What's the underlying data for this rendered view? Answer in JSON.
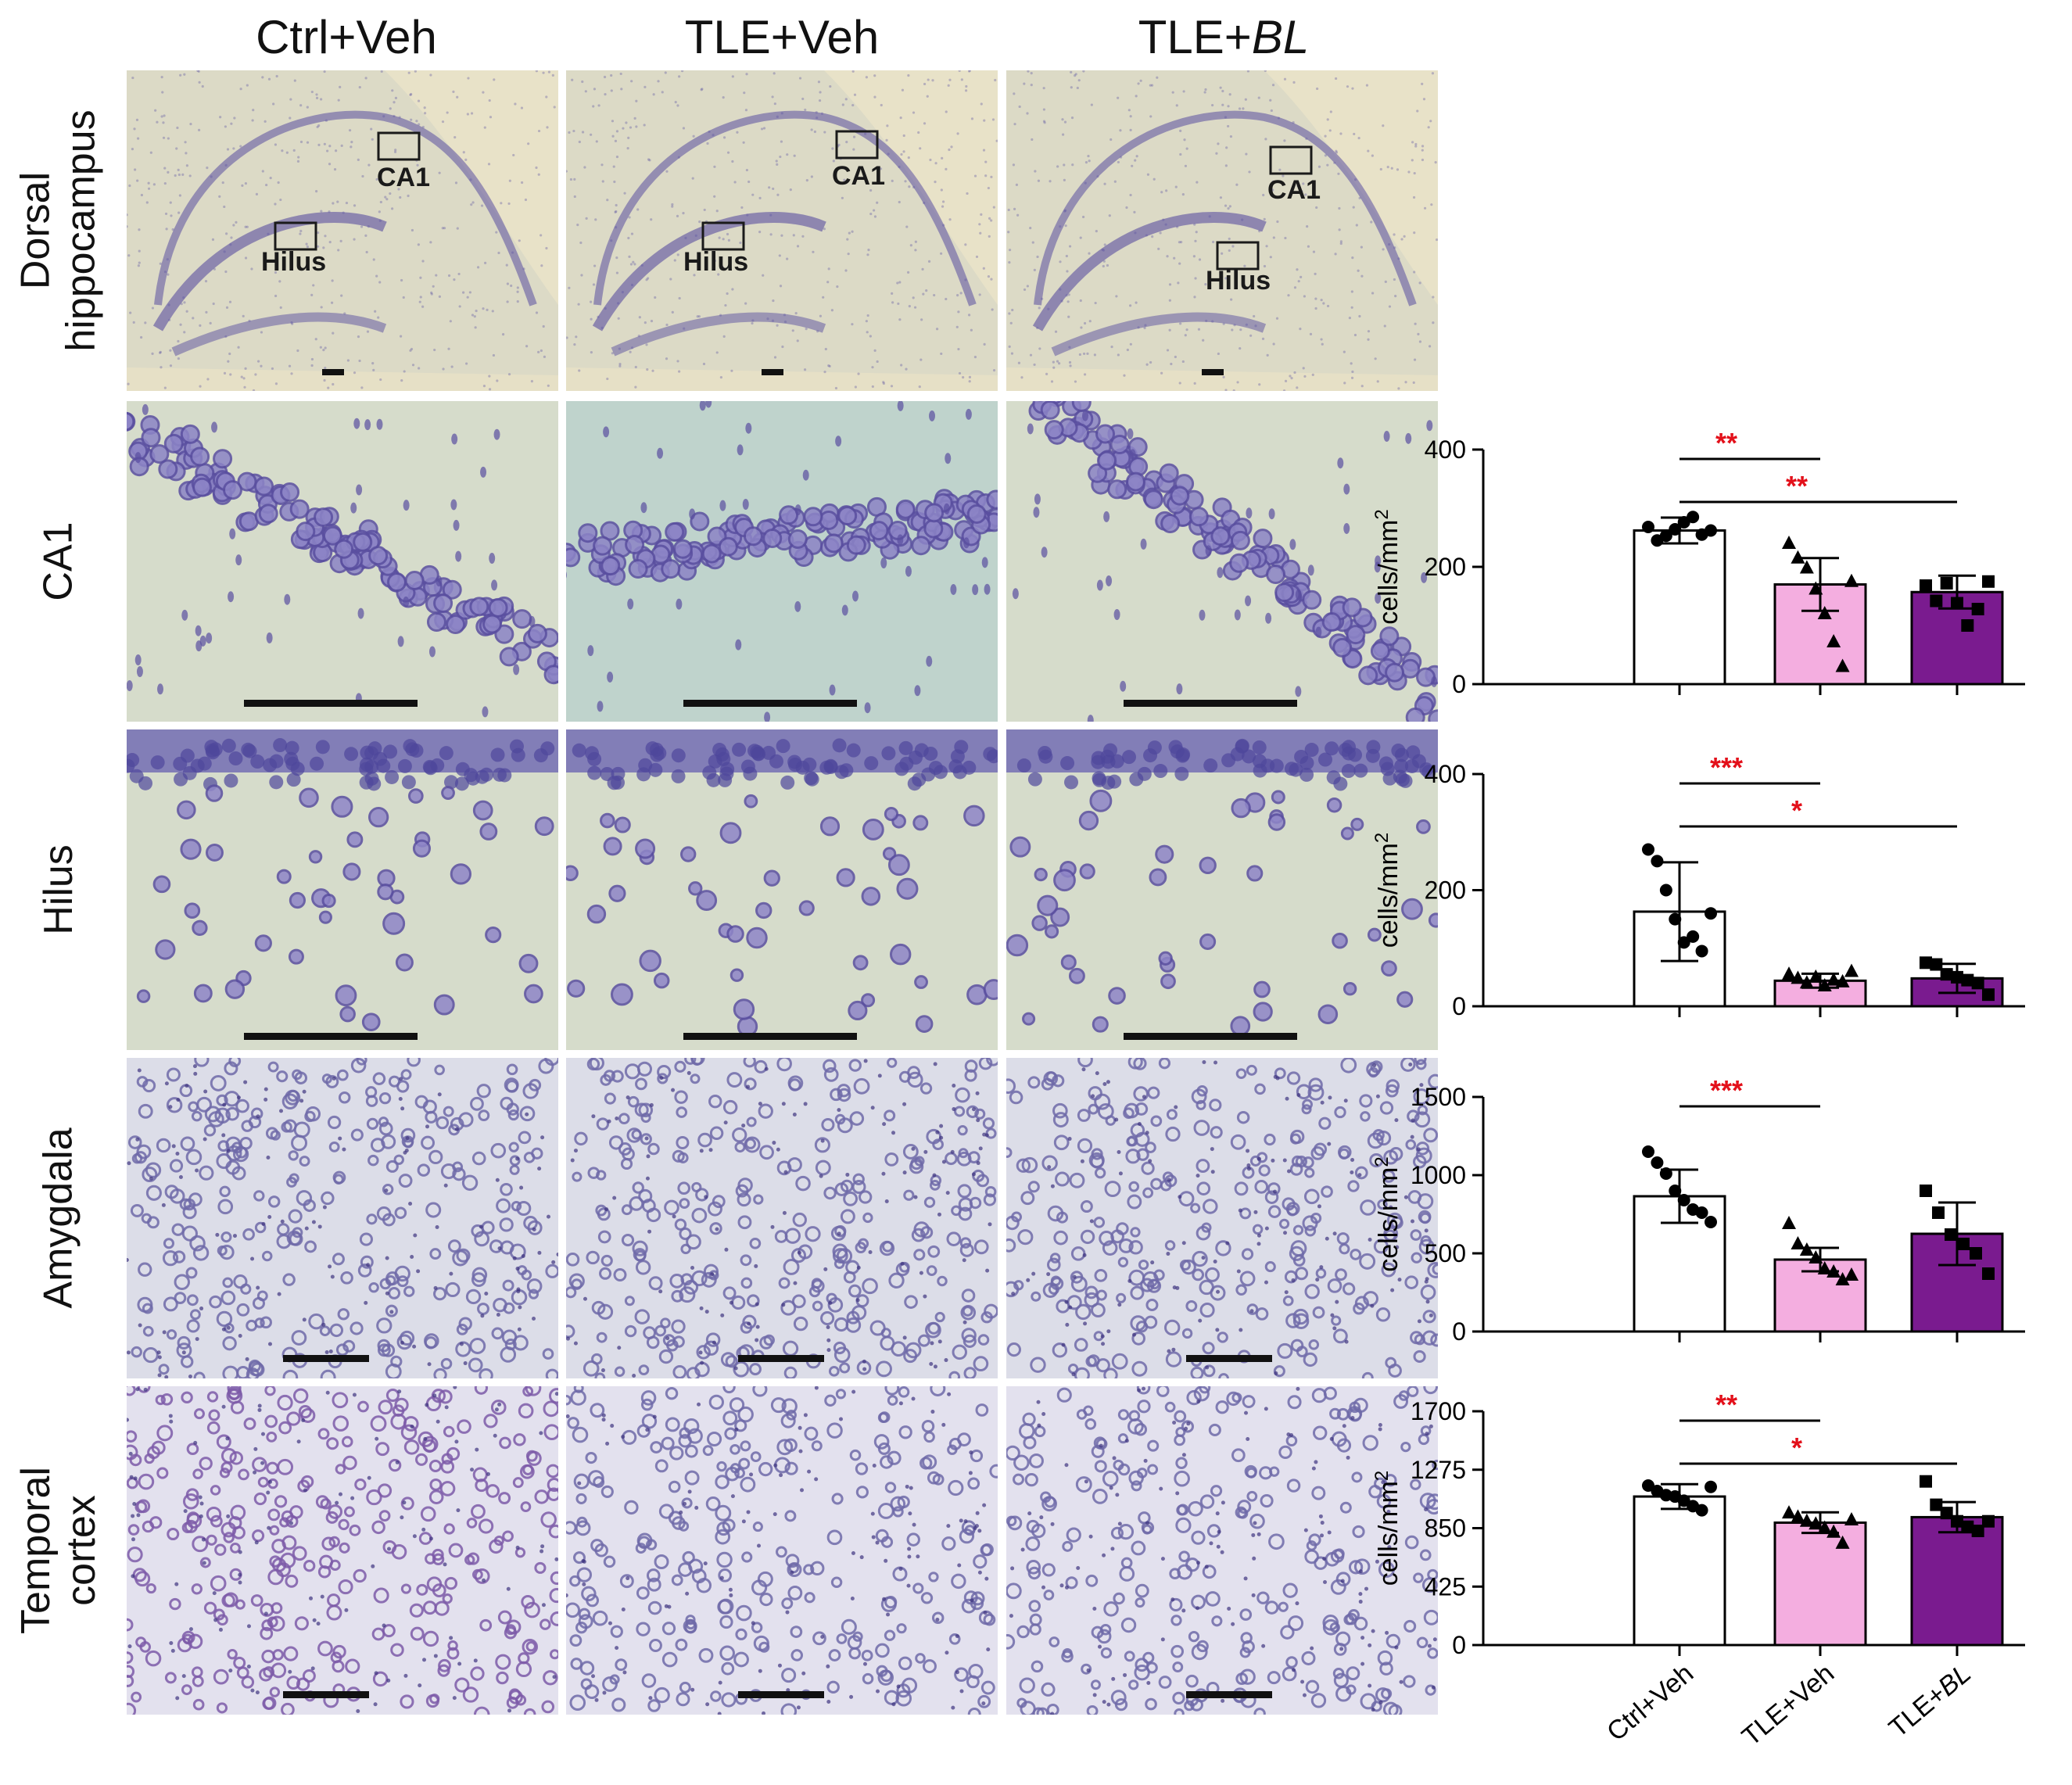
{
  "columns": [
    {
      "prefix": "Ctrl+Veh",
      "italic": ""
    },
    {
      "prefix": "TLE+",
      "italic": "Veh"
    },
    {
      "prefix": "TLE+",
      "italic": "BL"
    }
  ],
  "column_labels": [
    "Ctrl+Veh",
    "TLE+Veh",
    "TLE+BL"
  ],
  "rows": [
    {
      "label": [
        "Dorsal",
        "hippocampus"
      ]
    },
    {
      "label": [
        "CA1"
      ]
    },
    {
      "label": [
        "Hilus"
      ]
    },
    {
      "label": [
        "Amygdala"
      ]
    },
    {
      "label": [
        "Temporal",
        "cortex"
      ]
    }
  ],
  "overview_labels": {
    "ca1": "CA1",
    "hilus": "Hilus"
  },
  "colors": {
    "ctrl_bar": "#ffffff",
    "tle_veh_bar": "#f4aee0",
    "tle_bl_bar": "#7a1b8f",
    "significance": "#e3101a",
    "stain_dark": "#5a4fa0",
    "stain_bg": "#d7dcc7"
  },
  "chart_data": [
    {
      "type": "bar",
      "region": "CA1",
      "categories": [
        "Ctrl+Veh",
        "TLE+Veh",
        "TLE+BL"
      ],
      "values": [
        262,
        170,
        157
      ],
      "errors": [
        22,
        45,
        28
      ],
      "points": [
        [
          268,
          245,
          253,
          264,
          276,
          285,
          255,
          262
        ],
        [
          240,
          215,
          198,
          162,
          120,
          72,
          30,
          175
        ],
        [
          168,
          142,
          172,
          138,
          100,
          128,
          175
        ]
      ],
      "markers": [
        "circle",
        "triangle",
        "square"
      ],
      "ylabel": "cells/mm",
      "ylabel_sup": "2",
      "yticks": [
        "0",
        "200",
        "400"
      ],
      "ylim": [
        0,
        400
      ],
      "significance": [
        {
          "from": 0,
          "to": 1,
          "label": "**"
        },
        {
          "from": 0,
          "to": 2,
          "label": "**"
        }
      ]
    },
    {
      "type": "bar",
      "region": "Hilus",
      "categories": [
        "Ctrl+Veh",
        "TLE+Veh",
        "TLE+BL"
      ],
      "values": [
        163,
        44,
        48
      ],
      "errors": [
        85,
        12,
        25
      ],
      "points": [
        [
          270,
          250,
          200,
          150,
          110,
          120,
          95,
          160
        ],
        [
          55,
          48,
          40,
          50,
          35,
          45,
          42,
          60
        ],
        [
          75,
          72,
          55,
          50,
          45,
          40,
          20
        ]
      ],
      "markers": [
        "circle",
        "triangle",
        "square"
      ],
      "ylabel": "cells/mm",
      "ylabel_sup": "2",
      "yticks": [
        "0",
        "200",
        "400"
      ],
      "ylim": [
        0,
        400
      ],
      "significance": [
        {
          "from": 0,
          "to": 1,
          "label": "***"
        },
        {
          "from": 0,
          "to": 2,
          "label": "*"
        }
      ]
    },
    {
      "type": "bar",
      "region": "Amygdala",
      "categories": [
        "Ctrl+Veh",
        "TLE+Veh",
        "TLE+BL"
      ],
      "values": [
        865,
        460,
        625
      ],
      "errors": [
        170,
        75,
        200
      ],
      "points": [
        [
          1150,
          1080,
          1010,
          900,
          840,
          780,
          760,
          700
        ],
        [
          690,
          560,
          520,
          470,
          400,
          380,
          330,
          360
        ],
        [
          900,
          760,
          620,
          560,
          500,
          370
        ]
      ],
      "markers": [
        "circle",
        "triangle",
        "square"
      ],
      "ylabel": "cells/mm",
      "ylabel_sup": "2",
      "yticks": [
        "0",
        "500",
        "1000",
        "1500"
      ],
      "ylim": [
        0,
        1500
      ],
      "significance": [
        {
          "from": 0,
          "to": 1,
          "label": "***"
        }
      ]
    },
    {
      "type": "bar",
      "region": "Temporal cortex",
      "categories": [
        "Ctrl+Veh",
        "TLE+Veh",
        "TLE+BL"
      ],
      "values": [
        1080,
        890,
        930
      ],
      "errors": [
        90,
        75,
        110
      ],
      "points": [
        [
          1160,
          1120,
          1090,
          1080,
          1050,
          1010,
          980,
          1150
        ],
        [
          960,
          930,
          900,
          880,
          850,
          820,
          740,
          910
        ],
        [
          1190,
          1020,
          960,
          900,
          860,
          830,
          900
        ]
      ],
      "markers": [
        "circle",
        "triangle",
        "square"
      ],
      "ylabel": "cells/mm",
      "ylabel_sup": "2",
      "yticks": [
        "0",
        "425",
        "850",
        "1275",
        "1700"
      ],
      "ylim": [
        0,
        1700
      ],
      "significance": [
        {
          "from": 0,
          "to": 1,
          "label": "**"
        },
        {
          "from": 0,
          "to": 2,
          "label": "*"
        }
      ]
    }
  ]
}
